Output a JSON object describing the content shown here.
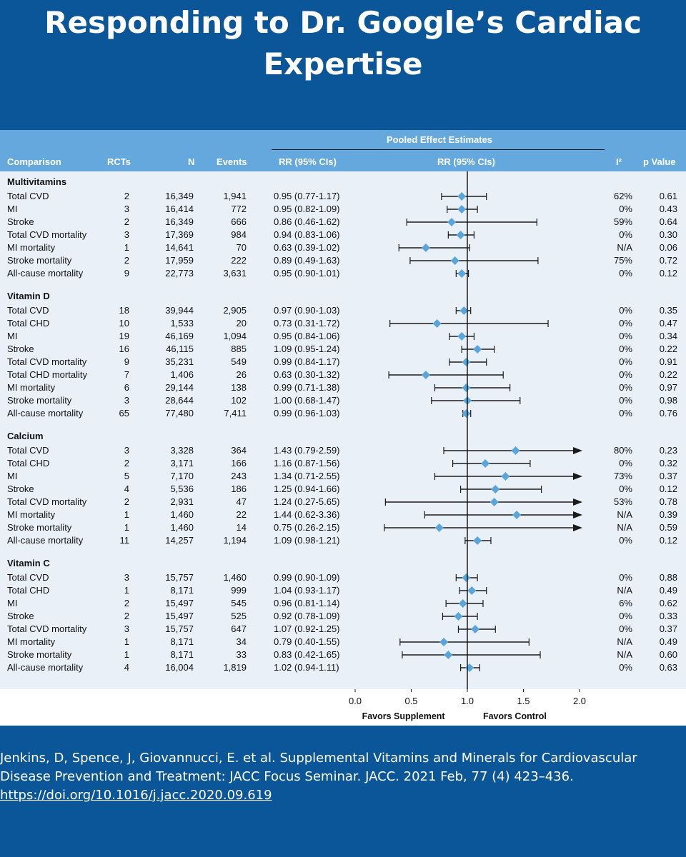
{
  "title": {
    "line1": "Responding to Dr. Google’s Cardiac",
    "line2": "Expertise"
  },
  "citation": {
    "text": "Jenkins, D, Spence, J, Giovannucci, E. et al. Supplemental Vitamins and Minerals for Cardiovascular Disease Prevention and Treatment: JACC Focus Seminar. JACC. 2021 Feb, 77 (4) 423–436.",
    "link": "https://doi.org/10.1016/j.jacc.2020.09.619"
  },
  "colors": {
    "background": "#0b5599",
    "header": "#65a8de",
    "panel": "#e9f0f8",
    "marker": "#5aa6dc"
  },
  "chart_data": {
    "type": "forest",
    "header_span": "Pooled Effect Estimates",
    "columns": [
      "Comparison",
      "RCTs",
      "N",
      "Events",
      "RR (95% CIs)",
      "RR (95% CIs)",
      "I²",
      "p Value"
    ],
    "xlim": [
      0.0,
      2.0
    ],
    "xticks": [
      "0.0",
      "0.5",
      "1.0",
      "1.5",
      "2.0"
    ],
    "reference_line": 1.0,
    "favors_left": "Favors Supplement",
    "favors_right": "Favors Control",
    "groups": [
      {
        "name": "Multivitamins",
        "rows": [
          {
            "label": "Total CVD",
            "rcts": "2",
            "n": "16,349",
            "events": "1,941",
            "rr_text": "0.95 (0.77-1.17)",
            "rr": 0.95,
            "lo": 0.77,
            "hi": 1.17,
            "i2": "62%",
            "p": "0.61"
          },
          {
            "label": "MI",
            "rcts": "3",
            "n": "16,414",
            "events": "772",
            "rr_text": "0.95 (0.82-1.09)",
            "rr": 0.95,
            "lo": 0.82,
            "hi": 1.09,
            "i2": "0%",
            "p": "0.43"
          },
          {
            "label": "Stroke",
            "rcts": "2",
            "n": "16,349",
            "events": "666",
            "rr_text": "0.86 (0.46-1.62)",
            "rr": 0.86,
            "lo": 0.46,
            "hi": 1.62,
            "i2": "59%",
            "p": "0.64"
          },
          {
            "label": "Total CVD mortality",
            "rcts": "3",
            "n": "17,369",
            "events": "984",
            "rr_text": "0.94 (0.83-1.06)",
            "rr": 0.94,
            "lo": 0.83,
            "hi": 1.06,
            "i2": "0%",
            "p": "0.30"
          },
          {
            "label": "MI mortality",
            "rcts": "1",
            "n": "14,641",
            "events": "70",
            "rr_text": "0.63 (0.39-1.02)",
            "rr": 0.63,
            "lo": 0.39,
            "hi": 1.02,
            "i2": "N/A",
            "p": "0.06"
          },
          {
            "label": "Stroke mortality",
            "rcts": "2",
            "n": "17,959",
            "events": "222",
            "rr_text": "0.89 (0.49-1.63)",
            "rr": 0.89,
            "lo": 0.49,
            "hi": 1.63,
            "i2": "75%",
            "p": "0.72"
          },
          {
            "label": "All-cause mortality",
            "rcts": "9",
            "n": "22,773",
            "events": "3,631",
            "rr_text": "0.95 (0.90-1.01)",
            "rr": 0.95,
            "lo": 0.9,
            "hi": 1.01,
            "i2": "0%",
            "p": "0.12"
          }
        ]
      },
      {
        "name": "Vitamin D",
        "rows": [
          {
            "label": "Total CVD",
            "rcts": "18",
            "n": "39,944",
            "events": "2,905",
            "rr_text": "0.97 (0.90-1.03)",
            "rr": 0.97,
            "lo": 0.9,
            "hi": 1.03,
            "i2": "0%",
            "p": "0.35"
          },
          {
            "label": "Total CHD",
            "rcts": "10",
            "n": "1,533",
            "events": "20",
            "rr_text": "0.73 (0.31-1.72)",
            "rr": 0.73,
            "lo": 0.31,
            "hi": 1.72,
            "i2": "0%",
            "p": "0.47"
          },
          {
            "label": "MI",
            "rcts": "19",
            "n": "46,169",
            "events": "1,094",
            "rr_text": "0.95 (0.84-1.06)",
            "rr": 0.95,
            "lo": 0.84,
            "hi": 1.06,
            "i2": "0%",
            "p": "0.34"
          },
          {
            "label": "Stroke",
            "rcts": "16",
            "n": "46,115",
            "events": "885",
            "rr_text": "1.09 (0.95-1.24)",
            "rr": 1.09,
            "lo": 0.95,
            "hi": 1.24,
            "i2": "0%",
            "p": "0.22"
          },
          {
            "label": "Total CVD mortality",
            "rcts": "9",
            "n": "35,231",
            "events": "549",
            "rr_text": "0.99 (0.84-1.17)",
            "rr": 0.99,
            "lo": 0.84,
            "hi": 1.17,
            "i2": "0%",
            "p": "0.91"
          },
          {
            "label": "Total CHD mortality",
            "rcts": "7",
            "n": "1,406",
            "events": "26",
            "rr_text": "0.63 (0.30-1.32)",
            "rr": 0.63,
            "lo": 0.3,
            "hi": 1.32,
            "i2": "0%",
            "p": "0.22"
          },
          {
            "label": "MI mortality",
            "rcts": "6",
            "n": "29,144",
            "events": "138",
            "rr_text": "0.99 (0.71-1.38)",
            "rr": 0.99,
            "lo": 0.71,
            "hi": 1.38,
            "i2": "0%",
            "p": "0.97"
          },
          {
            "label": "Stroke mortality",
            "rcts": "3",
            "n": "28,644",
            "events": "102",
            "rr_text": "1.00 (0.68-1.47)",
            "rr": 1.0,
            "lo": 0.68,
            "hi": 1.47,
            "i2": "0%",
            "p": "0.98"
          },
          {
            "label": "All-cause mortality",
            "rcts": "65",
            "n": "77,480",
            "events": "7,411",
            "rr_text": "0.99 (0.96-1.03)",
            "rr": 0.99,
            "lo": 0.96,
            "hi": 1.03,
            "i2": "0%",
            "p": "0.76"
          }
        ]
      },
      {
        "name": "Calcium",
        "rows": [
          {
            "label": "Total CVD",
            "rcts": "3",
            "n": "3,328",
            "events": "364",
            "rr_text": "1.43 (0.79-2.59)",
            "rr": 1.43,
            "lo": 0.79,
            "hi": 2.59,
            "i2": "80%",
            "p": "0.23"
          },
          {
            "label": "Total CHD",
            "rcts": "2",
            "n": "3,171",
            "events": "166",
            "rr_text": "1.16 (0.87-1.56)",
            "rr": 1.16,
            "lo": 0.87,
            "hi": 1.56,
            "i2": "0%",
            "p": "0.32"
          },
          {
            "label": "MI",
            "rcts": "5",
            "n": "7,170",
            "events": "243",
            "rr_text": "1.34 (0.71-2.55)",
            "rr": 1.34,
            "lo": 0.71,
            "hi": 2.55,
            "i2": "73%",
            "p": "0.37"
          },
          {
            "label": "Stroke",
            "rcts": "4",
            "n": "5,536",
            "events": "186",
            "rr_text": "1.25 (0.94-1.66)",
            "rr": 1.25,
            "lo": 0.94,
            "hi": 1.66,
            "i2": "0%",
            "p": "0.12"
          },
          {
            "label": "Total CVD mortality",
            "rcts": "2",
            "n": "2,931",
            "events": "47",
            "rr_text": "1.24 (0.27-5.65)",
            "rr": 1.24,
            "lo": 0.27,
            "hi": 5.65,
            "i2": "53%",
            "p": "0.78"
          },
          {
            "label": "MI mortality",
            "rcts": "1",
            "n": "1,460",
            "events": "22",
            "rr_text": "1.44 (0.62-3.36)",
            "rr": 1.44,
            "lo": 0.62,
            "hi": 3.36,
            "i2": "N/A",
            "p": "0.39"
          },
          {
            "label": "Stroke mortality",
            "rcts": "1",
            "n": "1,460",
            "events": "14",
            "rr_text": "0.75 (0.26-2.15)",
            "rr": 0.75,
            "lo": 0.26,
            "hi": 2.15,
            "i2": "N/A",
            "p": "0.59"
          },
          {
            "label": "All-cause mortality",
            "rcts": "11",
            "n": "14,257",
            "events": "1,194",
            "rr_text": "1.09 (0.98-1.21)",
            "rr": 1.09,
            "lo": 0.98,
            "hi": 1.21,
            "i2": "0%",
            "p": "0.12"
          }
        ]
      },
      {
        "name": "Vitamin C",
        "rows": [
          {
            "label": "Total CVD",
            "rcts": "3",
            "n": "15,757",
            "events": "1,460",
            "rr_text": "0.99 (0.90-1.09)",
            "rr": 0.99,
            "lo": 0.9,
            "hi": 1.09,
            "i2": "0%",
            "p": "0.88"
          },
          {
            "label": "Total CHD",
            "rcts": "1",
            "n": "8,171",
            "events": "999",
            "rr_text": "1.04 (0.93-1.17)",
            "rr": 1.04,
            "lo": 0.93,
            "hi": 1.17,
            "i2": "N/A",
            "p": "0.49"
          },
          {
            "label": "MI",
            "rcts": "2",
            "n": "15,497",
            "events": "545",
            "rr_text": "0.96 (0.81-1.14)",
            "rr": 0.96,
            "lo": 0.81,
            "hi": 1.14,
            "i2": "6%",
            "p": "0.62"
          },
          {
            "label": "Stroke",
            "rcts": "2",
            "n": "15,497",
            "events": "525",
            "rr_text": "0.92 (0.78-1.09)",
            "rr": 0.92,
            "lo": 0.78,
            "hi": 1.09,
            "i2": "0%",
            "p": "0.33"
          },
          {
            "label": "Total CVD mortality",
            "rcts": "3",
            "n": "15,757",
            "events": "647",
            "rr_text": "1.07 (0.92-1.25)",
            "rr": 1.07,
            "lo": 0.92,
            "hi": 1.25,
            "i2": "0%",
            "p": "0.37"
          },
          {
            "label": "MI mortality",
            "rcts": "1",
            "n": "8,171",
            "events": "34",
            "rr_text": "0.79 (0.40-1.55)",
            "rr": 0.79,
            "lo": 0.4,
            "hi": 1.55,
            "i2": "N/A",
            "p": "0.49"
          },
          {
            "label": "Stroke mortality",
            "rcts": "1",
            "n": "8,171",
            "events": "33",
            "rr_text": "0.83 (0.42-1.65)",
            "rr": 0.83,
            "lo": 0.42,
            "hi": 1.65,
            "i2": "N/A",
            "p": "0.60"
          },
          {
            "label": "All-cause mortality",
            "rcts": "4",
            "n": "16,004",
            "events": "1,819",
            "rr_text": "1.02 (0.94-1.11)",
            "rr": 1.02,
            "lo": 0.94,
            "hi": 1.11,
            "i2": "0%",
            "p": "0.63"
          }
        ]
      }
    ]
  }
}
